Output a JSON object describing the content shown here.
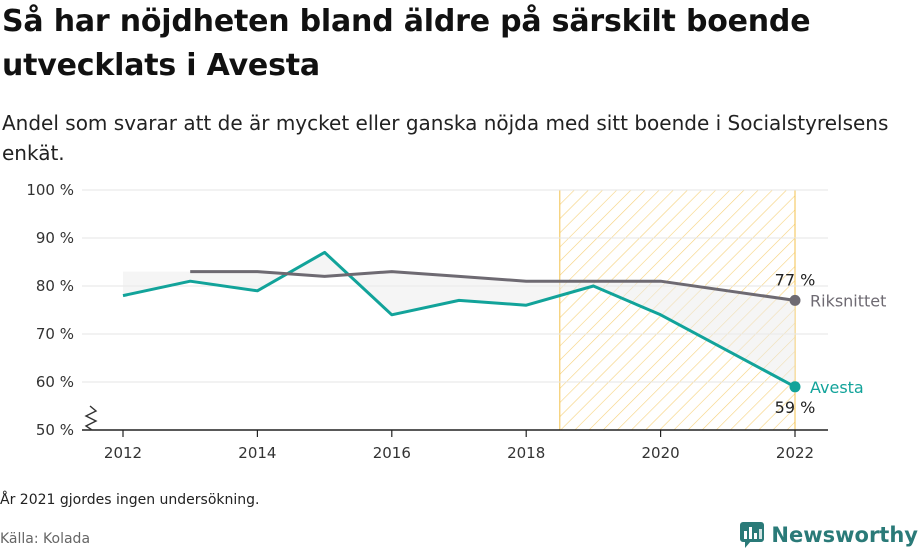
{
  "header": {
    "title": "Så har nöjdheten bland äldre på särskilt boende utvecklats i Avesta",
    "subtitle": "Andel som svarar att de är mycket eller ganska nöjda med sitt boende i Socialstyrelsens enkät."
  },
  "footer": {
    "note": "År 2021 gjordes ingen undersökning.",
    "source": "Källa: Kolada",
    "brand": "Newsworthy"
  },
  "colors": {
    "avesta": "#12a39a",
    "riket": "#6e6a72",
    "hatch": "#f3c24e",
    "grid": "#e6e6e6"
  },
  "chart_data": {
    "type": "line",
    "x_ticks": [
      2012,
      2014,
      2016,
      2018,
      2020,
      2022
    ],
    "y_ticks": [
      50,
      60,
      70,
      80,
      90,
      100
    ],
    "y_tick_labels": [
      "50 %",
      "60 %",
      "70 %",
      "80 %",
      "90 %",
      "100 %"
    ],
    "xlim": [
      2012,
      2022
    ],
    "ylim": [
      50,
      100
    ],
    "y_axis_break": true,
    "grid": true,
    "highlight_range": [
      2018.5,
      2022
    ],
    "series": [
      {
        "name": "Avesta",
        "x": [
          2012,
          2013,
          2014,
          2015,
          2016,
          2017,
          2018,
          2019,
          2020,
          2022
        ],
        "y": [
          78,
          81,
          79,
          87,
          74,
          77,
          76,
          80,
          74,
          59
        ],
        "end_value_label": "59 %"
      },
      {
        "name": "Riksnittet",
        "x": [
          2013,
          2014,
          2015,
          2016,
          2017,
          2018,
          2019,
          2020,
          2022
        ],
        "y": [
          83,
          83,
          82,
          83,
          82,
          81,
          81,
          81,
          77
        ],
        "end_value_label": "77 %"
      }
    ]
  }
}
